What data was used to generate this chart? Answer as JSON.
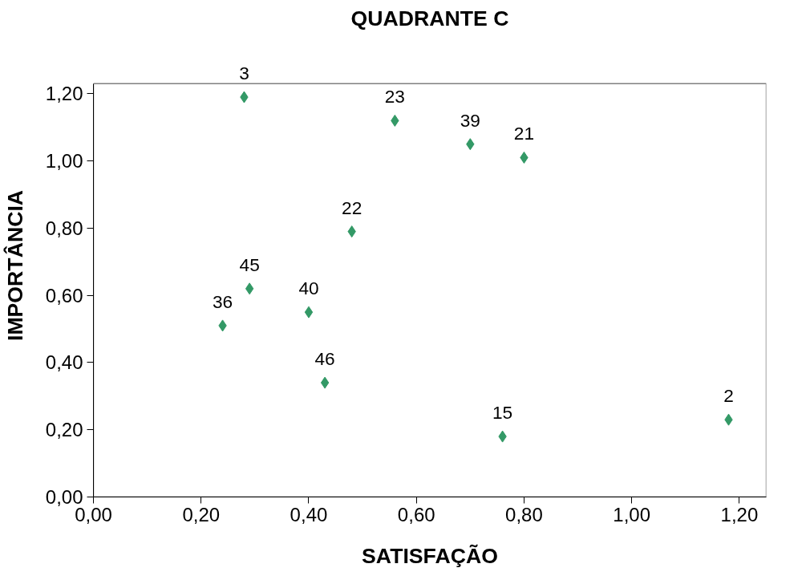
{
  "chart_data": {
    "type": "scatter",
    "title": "QUADRANTE C",
    "xlabel": "SATISFAÇÃO",
    "ylabel": "IMPORTÂNCIA",
    "x": [
      0.28,
      0.56,
      0.7,
      0.8,
      0.48,
      0.29,
      0.24,
      0.4,
      0.43,
      0.76,
      1.18
    ],
    "series": [
      {
        "color": "#339966",
        "values": [
          1.19,
          1.12,
          1.05,
          1.01,
          0.79,
          0.62,
          0.51,
          0.55,
          0.34,
          0.18,
          0.23
        ]
      }
    ],
    "annotations": [
      {
        "text": "3",
        "x": 0.28,
        "y": 1.19
      },
      {
        "text": "23",
        "x": 0.56,
        "y": 1.12
      },
      {
        "text": "39",
        "x": 0.7,
        "y": 1.05
      },
      {
        "text": "21",
        "x": 0.8,
        "y": 1.01
      },
      {
        "text": "22",
        "x": 0.48,
        "y": 0.79
      },
      {
        "text": "45",
        "x": 0.29,
        "y": 0.62
      },
      {
        "text": "36",
        "x": 0.24,
        "y": 0.51
      },
      {
        "text": "40",
        "x": 0.4,
        "y": 0.55
      },
      {
        "text": "46",
        "x": 0.43,
        "y": 0.34
      },
      {
        "text": "15",
        "x": 0.76,
        "y": 0.18
      },
      {
        "text": "2",
        "x": 1.18,
        "y": 0.23
      }
    ],
    "xlim": [
      0,
      1.25
    ],
    "ylim": [
      0,
      1.23
    ],
    "xticks": [
      {
        "value": 0,
        "label": "0,00"
      },
      {
        "value": 0.2,
        "label": "0,20"
      },
      {
        "value": 0.4,
        "label": "0,40"
      },
      {
        "value": 0.6,
        "label": "0,60"
      },
      {
        "value": 0.8,
        "label": "0,80"
      },
      {
        "value": 1.0,
        "label": "1,00"
      },
      {
        "value": 1.2,
        "label": "1,20"
      }
    ],
    "yticks": [
      {
        "value": 0,
        "label": "0,00"
      },
      {
        "value": 0.2,
        "label": "0,20"
      },
      {
        "value": 0.4,
        "label": "0,40"
      },
      {
        "value": 0.6,
        "label": "0,60"
      },
      {
        "value": 0.8,
        "label": "0,80"
      },
      {
        "value": 1.0,
        "label": "1,00"
      },
      {
        "value": 1.2,
        "label": "1,20"
      }
    ],
    "grid": false,
    "marker": "diamond"
  }
}
